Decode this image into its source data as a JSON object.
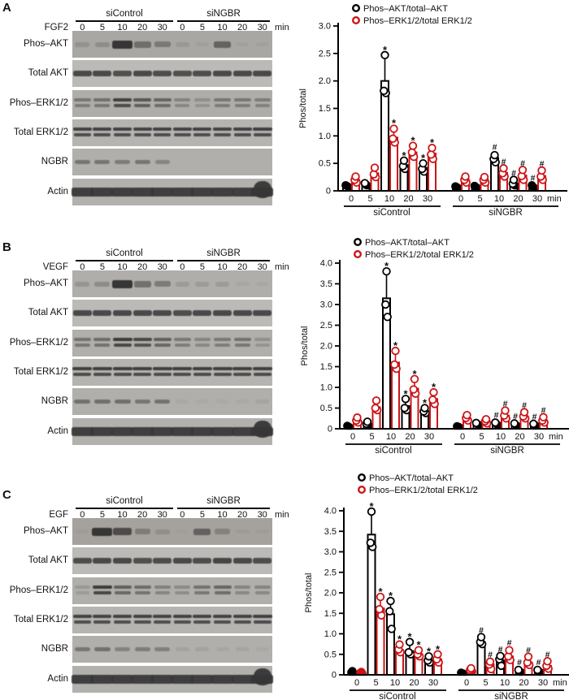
{
  "figure": {
    "background": "#ffffff",
    "accent_red": "#cc1417",
    "band_color": "#363636",
    "panels": [
      {
        "label": "A",
        "stimulus": "FGF2",
        "unit_label": "min",
        "group_labels": [
          "siControl",
          "siNGBR"
        ],
        "timepoints": [
          "0",
          "5",
          "10",
          "20",
          "30"
        ],
        "blot_rows": [
          {
            "label": "Phos–AKT",
            "style": "phos-single",
            "bg": "#a9a7a3",
            "intensities": [
              0.18,
              0.22,
              1.0,
              0.5,
              0.4,
              0.12,
              0.06,
              0.6,
              0.05,
              0.05
            ]
          },
          {
            "label": "Total AKT",
            "style": "single",
            "bg": "#bcbab7",
            "intensities": [
              0.85,
              0.85,
              0.8,
              0.85,
              0.82,
              0.8,
              0.82,
              0.85,
              0.85,
              0.85
            ]
          },
          {
            "label": "Phos–ERK1/2",
            "style": "double",
            "bg": "#afada9",
            "intensities": [
              0.45,
              0.5,
              0.9,
              0.72,
              0.6,
              0.35,
              0.25,
              0.45,
              0.45,
              0.4
            ]
          },
          {
            "label": "Total ERK1/2",
            "style": "double",
            "bg": "#b6b4b1",
            "intensities": [
              0.9,
              0.9,
              0.9,
              0.9,
              0.9,
              0.9,
              0.9,
              0.9,
              0.9,
              0.92
            ]
          },
          {
            "label": "NGBR",
            "style": "ngbr",
            "bg": "#b1afac",
            "intensities": [
              0.55,
              0.55,
              0.5,
              0.55,
              0.4,
              0,
              0,
              0,
              0,
              0
            ]
          },
          {
            "label": "Actin",
            "style": "actin",
            "bg": "#b3b1ae",
            "intensities": [
              0.92,
              0.92,
              0.92,
              0.92,
              0.92,
              0.92,
              0.92,
              0.92,
              0.92,
              0.95
            ]
          }
        ]
      },
      {
        "label": "B",
        "stimulus": "VEGF",
        "unit_label": "min",
        "group_labels": [
          "siControl",
          "siNGBR"
        ],
        "timepoints": [
          "0",
          "5",
          "10",
          "20",
          "30"
        ],
        "blot_rows": [
          {
            "label": "Phos–AKT",
            "style": "phos-single",
            "bg": "#b0aeaa",
            "intensities": [
              0.2,
              0.28,
              1.0,
              0.5,
              0.42,
              0.15,
              0.15,
              0.15,
              0.06,
              0.05
            ]
          },
          {
            "label": "Total AKT",
            "style": "single",
            "bg": "#bcbab7",
            "intensities": [
              0.85,
              0.85,
              0.85,
              0.85,
              0.85,
              0.82,
              0.85,
              0.85,
              0.85,
              0.85
            ]
          },
          {
            "label": "Phos–ERK1/2",
            "style": "double",
            "bg": "#b1afab",
            "intensities": [
              0.5,
              0.55,
              0.95,
              0.85,
              0.65,
              0.45,
              0.35,
              0.45,
              0.5,
              0.25
            ]
          },
          {
            "label": "Total ERK1/2",
            "style": "double",
            "bg": "#b6b4b1",
            "intensities": [
              0.92,
              0.92,
              0.92,
              0.92,
              0.92,
              0.92,
              0.92,
              0.92,
              0.92,
              0.92
            ]
          },
          {
            "label": "NGBR",
            "style": "ngbr",
            "bg": "#b1afac",
            "intensities": [
              0.6,
              0.62,
              0.62,
              0.55,
              0.58,
              0.07,
              0.05,
              0.05,
              0.05,
              0.1
            ]
          },
          {
            "label": "Actin",
            "style": "actin",
            "bg": "#b3b1ae",
            "intensities": [
              0.92,
              0.92,
              0.92,
              0.92,
              0.92,
              0.92,
              0.92,
              0.92,
              0.92,
              0.95
            ]
          }
        ]
      },
      {
        "label": "C",
        "stimulus": "EGF",
        "unit_label": "min",
        "group_labels": [
          "siControl",
          "siNGBR"
        ],
        "timepoints": [
          "0",
          "5",
          "10",
          "20",
          "30"
        ],
        "blot_rows": [
          {
            "label": "Phos–AKT",
            "style": "phos-single",
            "bg": "#a5a29e",
            "intensities": [
              0.05,
              1.0,
              0.8,
              0.35,
              0.18,
              0.03,
              0.6,
              0.3,
              0.06,
              0.05
            ]
          },
          {
            "label": "Total AKT",
            "style": "single",
            "bg": "#bcbab7",
            "intensities": [
              0.82,
              0.85,
              0.85,
              0.8,
              0.82,
              0.85,
              0.82,
              0.88,
              0.85,
              0.82
            ]
          },
          {
            "label": "Phos–ERK1/2",
            "style": "double",
            "bg": "#b1afab",
            "intensities": [
              0.18,
              0.95,
              0.65,
              0.55,
              0.38,
              0.3,
              0.5,
              0.6,
              0.35,
              0.35
            ]
          },
          {
            "label": "Total ERK1/2",
            "style": "double",
            "bg": "#b6b4b1",
            "intensities": [
              0.9,
              0.9,
              0.9,
              0.9,
              0.9,
              0.9,
              0.9,
              0.9,
              0.9,
              0.92
            ]
          },
          {
            "label": "NGBR",
            "style": "ngbr",
            "bg": "#b1afac",
            "intensities": [
              0.55,
              0.6,
              0.42,
              0.48,
              0.45,
              0.12,
              0.12,
              0.08,
              0.1,
              0.06
            ]
          },
          {
            "label": "Actin",
            "style": "actin",
            "bg": "#b3b1ae",
            "intensities": [
              0.92,
              0.92,
              0.92,
              0.92,
              0.92,
              0.92,
              0.92,
              0.92,
              0.92,
              0.95
            ]
          }
        ]
      }
    ]
  },
  "chart_data": [
    {
      "panel": "A",
      "type": "bar",
      "title": "",
      "ylabel": "Phos/total",
      "ylim": [
        0,
        3.0
      ],
      "yticks": [
        "0",
        "0.5",
        "1.0",
        "1.5",
        "2.0",
        "2.5",
        "3.0"
      ],
      "x_unit": "min",
      "grid": false,
      "legend_position": "top",
      "group_labels": [
        "siControl",
        "siNGBR"
      ],
      "categories": [
        "0",
        "5",
        "10",
        "20",
        "30",
        "0",
        "5",
        "10",
        "20",
        "30"
      ],
      "legend": [
        "Phos–AKT/total–AKT",
        "Phos–ERK1/2/total ERK1/2"
      ],
      "series": [
        {
          "name": "Phos–AKT/total–AKT",
          "color": "#000000",
          "values": [
            0.05,
            0.12,
            2.0,
            0.47,
            0.42,
            0.05,
            0.08,
            0.6,
            0.13,
            0.08
          ],
          "errors_up": [
            0.03,
            0.04,
            0.45,
            0.08,
            0.08,
            0.02,
            0.02,
            0.07,
            0.05,
            0.03
          ],
          "points": [
            [
              0.08,
              0.1
            ],
            [
              0.1,
              0.14
            ],
            [
              1.78,
              1.82,
              2.47
            ],
            [
              0.4,
              0.45,
              0.55
            ],
            [
              0.35,
              0.4,
              0.5
            ],
            [
              0.06,
              0.08
            ],
            [
              0.06,
              0.09
            ],
            [
              0.52,
              0.58,
              0.65
            ],
            [
              0.1,
              0.13,
              0.2
            ],
            [
              0.06,
              0.1
            ]
          ],
          "sig": [
            "",
            "",
            "*",
            "*",
            "*",
            "",
            "",
            "#",
            "#",
            "#"
          ]
        },
        {
          "name": "Phos–ERK1/2/total ERK1/2",
          "color": "#cc1417",
          "values": [
            0.2,
            0.32,
            0.97,
            0.7,
            0.68,
            0.2,
            0.2,
            0.33,
            0.28,
            0.27
          ],
          "errors_up": [
            0.06,
            0.1,
            0.17,
            0.12,
            0.1,
            0.06,
            0.05,
            0.08,
            0.1,
            0.1
          ],
          "points": [
            [
              0.15,
              0.2,
              0.26
            ],
            [
              0.25,
              0.3,
              0.42
            ],
            [
              0.88,
              0.95,
              1.13
            ],
            [
              0.62,
              0.7,
              0.82
            ],
            [
              0.58,
              0.66,
              0.78
            ],
            [
              0.15,
              0.2,
              0.26
            ],
            [
              0.15,
              0.2,
              0.25
            ],
            [
              0.26,
              0.32,
              0.41
            ],
            [
              0.2,
              0.27,
              0.38
            ],
            [
              0.2,
              0.26,
              0.37
            ]
          ],
          "sig": [
            "",
            "",
            "*",
            "*",
            "*",
            "",
            "",
            "#",
            "#",
            "#"
          ]
        }
      ]
    },
    {
      "panel": "B",
      "type": "bar",
      "title": "",
      "ylabel": "Phos/total",
      "ylim": [
        0,
        4.0
      ],
      "yticks": [
        "0",
        "0.5",
        "1.0",
        "1.5",
        "2.0",
        "2.5",
        "3.0",
        "3.5",
        "4.0"
      ],
      "x_unit": "min",
      "grid": false,
      "legend_position": "top",
      "group_labels": [
        "siControl",
        "siNGBR"
      ],
      "categories": [
        "0",
        "5",
        "10",
        "20",
        "30",
        "0",
        "5",
        "10",
        "20",
        "30"
      ],
      "legend": [
        "Phos–AKT/total–AKT",
        "Phos–ERK1/2/total ERK1/2"
      ],
      "series": [
        {
          "name": "Phos–AKT/total–AKT",
          "color": "#000000",
          "values": [
            0.06,
            0.1,
            3.15,
            0.55,
            0.42,
            0.05,
            0.12,
            0.12,
            0.1,
            0.1
          ],
          "errors_up": [
            0.02,
            0.04,
            0.65,
            0.17,
            0.08,
            0.02,
            0.04,
            0.05,
            0.04,
            0.03
          ],
          "points": [
            [
              0.04,
              0.07
            ],
            [
              0.08,
              0.12,
              0.17
            ],
            [
              2.7,
              3.0,
              3.8
            ],
            [
              0.45,
              0.5,
              0.72
            ],
            [
              0.38,
              0.42,
              0.5
            ],
            [
              0.04,
              0.06
            ],
            [
              0.1,
              0.14
            ],
            [
              0.1,
              0.15
            ],
            [
              0.08,
              0.13
            ],
            [
              0.08,
              0.12
            ]
          ],
          "sig": [
            "",
            "",
            "*",
            "*",
            "*",
            "",
            "",
            "#",
            "#",
            "#"
          ]
        },
        {
          "name": "Phos–ERK1/2/total ERK1/2",
          "color": "#cc1417",
          "values": [
            0.2,
            0.52,
            1.6,
            0.97,
            0.72,
            0.25,
            0.18,
            0.32,
            0.3,
            0.2
          ],
          "errors_up": [
            0.07,
            0.16,
            0.28,
            0.23,
            0.16,
            0.08,
            0.05,
            0.12,
            0.1,
            0.08
          ],
          "points": [
            [
              0.15,
              0.2,
              0.27
            ],
            [
              0.45,
              0.5,
              0.68
            ],
            [
              1.45,
              1.55,
              1.88
            ],
            [
              0.85,
              0.95,
              1.2
            ],
            [
              0.6,
              0.7,
              0.88
            ],
            [
              0.2,
              0.26,
              0.33
            ],
            [
              0.13,
              0.18,
              0.23
            ],
            [
              0.25,
              0.32,
              0.44
            ],
            [
              0.25,
              0.3,
              0.4
            ],
            [
              0.15,
              0.2,
              0.28
            ]
          ],
          "sig": [
            "",
            "",
            "*",
            "*",
            "*",
            "",
            "",
            "#",
            "#",
            "#"
          ]
        }
      ]
    },
    {
      "panel": "C",
      "type": "bar",
      "title": "",
      "ylabel": "Phos/total",
      "ylim": [
        0,
        4.0
      ],
      "yticks": [
        "0",
        "0.5",
        "1.0",
        "1.5",
        "2.0",
        "2.5",
        "3.0",
        "3.5",
        "4.0"
      ],
      "x_unit": "min",
      "grid": false,
      "legend_position": "top",
      "group_labels": [
        "siControl",
        "siNGBR"
      ],
      "categories": [
        "0",
        "5",
        "10",
        "20",
        "30",
        "0",
        "5",
        "10",
        "20",
        "30"
      ],
      "legend": [
        "Phos–AKT/total–AKT",
        "Phos–ERK1/2/total ERK1/2"
      ],
      "series": [
        {
          "name": "Phos–AKT/total–AKT",
          "color": "#000000",
          "values": [
            0.06,
            3.42,
            1.48,
            0.58,
            0.35,
            0.05,
            0.8,
            0.35,
            0.1,
            0.1
          ],
          "errors_up": [
            0.02,
            0.56,
            0.3,
            0.2,
            0.1,
            0.02,
            0.12,
            0.1,
            0.04,
            0.04
          ],
          "points": [
            [
              0.04,
              0.06,
              0.09
            ],
            [
              3.12,
              3.22,
              3.98
            ],
            [
              1.12,
              1.55,
              1.8
            ],
            [
              0.5,
              0.55,
              0.8
            ],
            [
              0.3,
              0.35,
              0.45
            ],
            [
              0.03,
              0.05
            ],
            [
              0.75,
              0.8,
              0.92
            ],
            [
              0.22,
              0.38,
              0.46
            ],
            [
              0.07,
              0.12
            ],
            [
              0.07,
              0.12
            ]
          ],
          "sig": [
            "",
            "*",
            "*",
            "*",
            "*",
            "",
            "#",
            "#",
            "#",
            "#"
          ]
        },
        {
          "name": "Phos–ERK1/2/total ERK1/2",
          "color": "#cc1417",
          "values": [
            0.05,
            1.62,
            0.6,
            0.5,
            0.38,
            0.12,
            0.25,
            0.45,
            0.3,
            0.22
          ],
          "errors_up": [
            0.02,
            0.27,
            0.14,
            0.1,
            0.12,
            0.04,
            0.08,
            0.16,
            0.13,
            0.11
          ],
          "points": [
            [
              0.03,
              0.05,
              0.07
            ],
            [
              1.45,
              1.6,
              1.9
            ],
            [
              0.55,
              0.62,
              0.74
            ],
            [
              0.45,
              0.5,
              0.6
            ],
            [
              0.3,
              0.38,
              0.5
            ],
            [
              0.08,
              0.12,
              0.16
            ],
            [
              0.14,
              0.25,
              0.32
            ],
            [
              0.36,
              0.45,
              0.6
            ],
            [
              0.24,
              0.3,
              0.44
            ],
            [
              0.15,
              0.22,
              0.33
            ]
          ],
          "sig": [
            "",
            "*",
            "*",
            "*",
            "*",
            "",
            "#",
            "#",
            "#",
            "#"
          ]
        }
      ]
    }
  ]
}
